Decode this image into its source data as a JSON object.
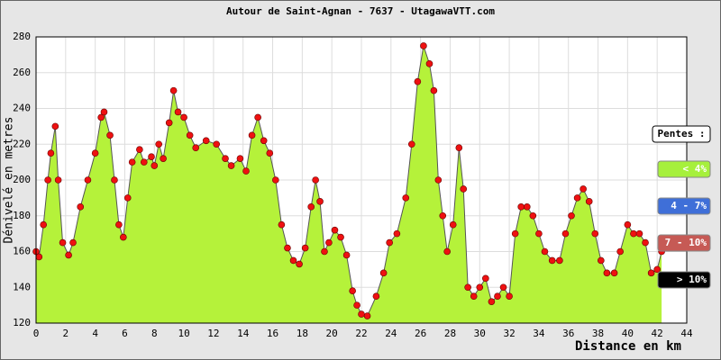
{
  "chart_data": {
    "type": "area",
    "title": "Autour de Saint-Agnan  - 7637 - UtagawaVTT.com",
    "x_label": "Distance en km",
    "y_label": "Dénivelé en metres",
    "x": [
      0,
      0.2,
      0.5,
      0.8,
      1.0,
      1.3,
      1.5,
      1.8,
      2.2,
      2.5,
      3.0,
      3.5,
      4.0,
      4.4,
      4.6,
      5.0,
      5.3,
      5.6,
      5.9,
      6.2,
      6.5,
      7.0,
      7.3,
      7.8,
      8.0,
      8.3,
      8.6,
      9.0,
      9.3,
      9.6,
      10.0,
      10.4,
      10.8,
      11.5,
      12.2,
      12.8,
      13.2,
      13.8,
      14.2,
      14.6,
      15.0,
      15.4,
      15.8,
      16.2,
      16.6,
      17.0,
      17.4,
      17.8,
      18.2,
      18.6,
      18.9,
      19.2,
      19.5,
      19.8,
      20.2,
      20.6,
      21.0,
      21.4,
      21.7,
      22.0,
      22.4,
      23.0,
      23.5,
      23.9,
      24.4,
      25.0,
      25.4,
      25.8,
      26.2,
      26.6,
      26.9,
      27.2,
      27.5,
      27.8,
      28.2,
      28.6,
      28.9,
      29.2,
      29.6,
      30.0,
      30.4,
      30.8,
      31.2,
      31.6,
      32.0,
      32.4,
      32.8,
      33.2,
      33.6,
      34.0,
      34.4,
      34.9,
      35.4,
      35.8,
      36.2,
      36.6,
      37.0,
      37.4,
      37.8,
      38.2,
      38.6,
      39.1,
      39.5,
      40.0,
      40.4,
      40.8,
      41.2,
      41.6,
      42.0,
      42.3
    ],
    "values": [
      160,
      157,
      175,
      200,
      215,
      230,
      200,
      165,
      158,
      165,
      185,
      200,
      215,
      235,
      238,
      225,
      200,
      175,
      168,
      190,
      210,
      217,
      210,
      213,
      208,
      220,
      212,
      232,
      250,
      238,
      235,
      225,
      218,
      222,
      220,
      212,
      208,
      212,
      205,
      225,
      235,
      222,
      215,
      200,
      175,
      162,
      155,
      153,
      162,
      185,
      200,
      188,
      160,
      165,
      172,
      168,
      158,
      138,
      130,
      125,
      124,
      135,
      148,
      165,
      170,
      190,
      220,
      255,
      275,
      265,
      250,
      200,
      180,
      160,
      175,
      218,
      195,
      140,
      135,
      140,
      145,
      132,
      135,
      140,
      135,
      170,
      185,
      185,
      180,
      170,
      160,
      155,
      155,
      170,
      180,
      190,
      195,
      188,
      170,
      155,
      148,
      148,
      160,
      175,
      170,
      170,
      165,
      148,
      150,
      160
    ],
    "color": "#b5f23a",
    "line_color": "#555555",
    "marker_color": "#ee1111",
    "xlim": [
      0,
      44
    ],
    "xticks": [
      0,
      2,
      4,
      6,
      8,
      10,
      12,
      14,
      16,
      18,
      20,
      22,
      24,
      26,
      28,
      30,
      32,
      34,
      36,
      38,
      40,
      42,
      44
    ],
    "ylim": [
      120,
      280
    ],
    "yticks": [
      120,
      140,
      160,
      180,
      200,
      220,
      240,
      260,
      280
    ],
    "grid": true,
    "legend": {
      "title": "Pentes :",
      "items": [
        {
          "label": "< 4%",
          "color": "#a6f03c"
        },
        {
          "label": "4 - 7%",
          "color": "#3f6fd8"
        },
        {
          "label": "7 - 10%",
          "color": "#c65a55"
        },
        {
          "label": "> 10%",
          "color": "#000000"
        }
      ]
    }
  }
}
